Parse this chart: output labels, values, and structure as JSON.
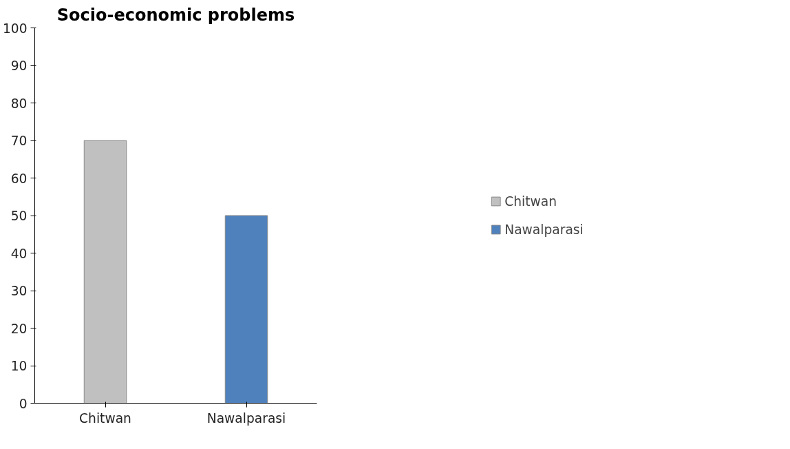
{
  "chart_data": {
    "type": "bar",
    "title": "Socio-economic problems",
    "categories": [
      "Chitwan",
      "Nawalparasi"
    ],
    "series": [
      {
        "name": "Chitwan",
        "color": "#c0c0c0",
        "values": [
          70,
          null
        ]
      },
      {
        "name": "Nawalparasi",
        "color": "#4f81bd",
        "values": [
          null,
          50
        ]
      }
    ],
    "ylim": [
      0,
      100
    ],
    "yticks": [
      0,
      10,
      20,
      30,
      40,
      50,
      60,
      70,
      80,
      90,
      100
    ],
    "grid": false,
    "legend": "right"
  }
}
